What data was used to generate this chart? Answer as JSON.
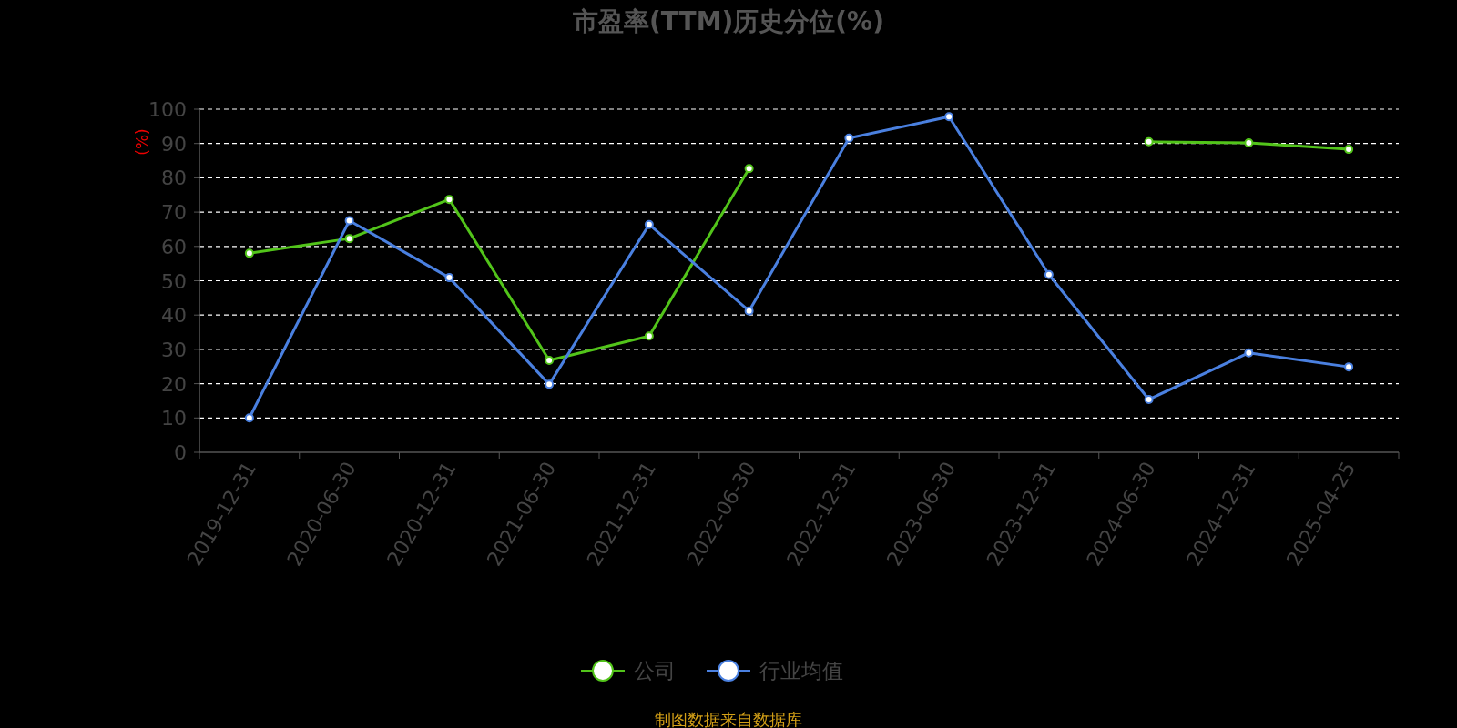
{
  "chart_data": {
    "type": "line",
    "title": "市盈率(TTM)历史分位(%)",
    "ylabel": "(%)",
    "categories": [
      "2019-12-31",
      "2020-06-30",
      "2020-12-31",
      "2021-06-30",
      "2021-12-31",
      "2022-06-30",
      "2022-12-31",
      "2023-06-30",
      "2023-12-31",
      "2024-06-30",
      "2024-12-31",
      "2025-04-25"
    ],
    "series": [
      {
        "name": "公司",
        "color": "#52c41a",
        "values": [
          58.0,
          62.3,
          73.7,
          26.8,
          33.9,
          82.7,
          null,
          null,
          null,
          90.5,
          90.2,
          88.3
        ]
      },
      {
        "name": "行业均值",
        "color": "#4a80e0",
        "values": [
          10.0,
          67.5,
          50.9,
          19.8,
          66.4,
          41.2,
          91.6,
          97.8,
          51.8,
          15.4,
          29.0,
          24.9
        ]
      }
    ],
    "ylim": [
      0,
      100
    ],
    "yticks": [
      0,
      10,
      20,
      30,
      40,
      50,
      60,
      70,
      80,
      90,
      100
    ],
    "grid": "y",
    "legend": "bottom",
    "marker": "circle",
    "line_style": "solid",
    "annotations": [
      "制图数据来自数据库"
    ]
  }
}
